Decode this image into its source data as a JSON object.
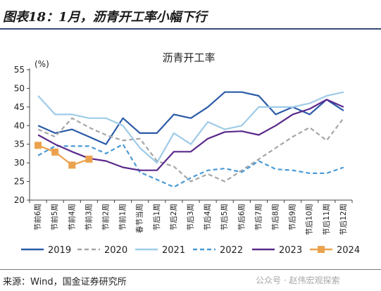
{
  "figure": {
    "title": "图表18：1月，沥青开工率小幅下行",
    "source": "来源：Wind，国金证券研究所",
    "watermark": "公众号 · 赵伟宏观探索"
  },
  "chart_data": {
    "type": "line",
    "title": "沥青开工率",
    "ylabel": "(%)",
    "xlabel": "",
    "ylim": [
      20,
      55
    ],
    "yticks": [
      20,
      25,
      30,
      35,
      40,
      45,
      50,
      55
    ],
    "grid": false,
    "legend_position": "bottom",
    "categories": [
      "节前6周",
      "节前5周",
      "节前4周",
      "节前3周",
      "节前2周",
      "节前1周",
      "春节当周",
      "节后1周",
      "节后2周",
      "节后3周",
      "节后4周",
      "节后5周",
      "节后6周",
      "节后7周",
      "节后8周",
      "节后9周",
      "节后10周",
      "节后11周",
      "节后12周"
    ],
    "series": [
      {
        "name": "2019",
        "color": "#2b5ba8",
        "dash": "solid",
        "values": [
          40,
          38,
          39,
          37,
          35,
          42,
          38,
          38,
          43,
          42,
          45,
          49,
          49,
          48,
          43,
          45,
          43,
          47,
          44
        ]
      },
      {
        "name": "2020",
        "color": "#a6a6a6",
        "dash": "dash",
        "values": [
          39,
          37,
          42,
          39.5,
          37.5,
          36,
          36.5,
          30.5,
          29,
          25,
          27,
          25,
          28,
          31,
          34,
          37,
          39.5,
          36,
          42
        ]
      },
      {
        "name": "2021",
        "color": "#9fcbe8",
        "dash": "solid",
        "values": [
          48,
          43,
          43,
          42,
          42,
          40,
          34,
          30,
          38,
          35,
          41,
          39,
          40,
          45,
          45,
          45,
          46,
          48,
          49
        ]
      },
      {
        "name": "2022",
        "color": "#4a9ad6",
        "dash": "dash",
        "values": [
          32,
          34.5,
          34.5,
          34.5,
          32.5,
          35,
          27.5,
          25.5,
          23.5,
          26,
          28,
          28.5,
          27.5,
          30.5,
          28.3,
          28,
          27.2,
          27.2,
          28.8
        ]
      },
      {
        "name": "2023",
        "color": "#5b2a8c",
        "dash": "solid",
        "values": [
          37.5,
          35,
          33,
          31.2,
          30.5,
          28.8,
          28,
          28,
          33,
          33,
          36.5,
          38.3,
          38.5,
          37.5,
          40,
          43,
          44.5,
          47,
          45
        ]
      },
      {
        "name": "2024",
        "color": "#eba24e",
        "dash": "solid",
        "markers": true,
        "values": [
          34.7,
          32.9,
          29.4,
          31,
          null,
          null,
          null,
          null,
          null,
          null,
          null,
          null,
          null,
          null,
          null,
          null,
          null,
          null,
          null
        ]
      }
    ]
  }
}
